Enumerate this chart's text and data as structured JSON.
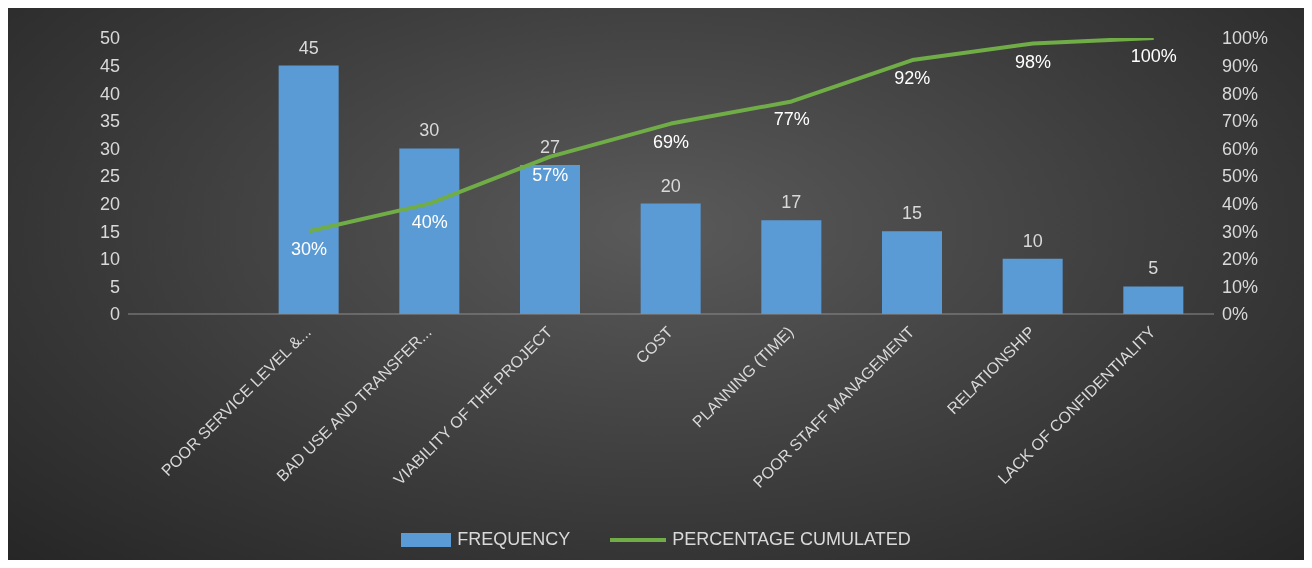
{
  "chart_data": {
    "type": "bar",
    "categories": [
      null,
      "POOR SERVICE LEVEL &...",
      "BAD USE AND TRANSFER...",
      "VIABILITY OF THE PROJECT",
      "COST",
      "PLANNING (TIME)",
      "POOR STAFF MANAGEMENT",
      "RELATIONSHIP",
      "LACK OF CONFIDENTIALITY"
    ],
    "series": [
      {
        "name": "FREQUENCY",
        "color": "#5b9bd5",
        "values": [
          null,
          45,
          30,
          27,
          20,
          17,
          15,
          10,
          5
        ],
        "value_labels": [
          null,
          "45",
          "30",
          "27",
          "20",
          "17",
          "15",
          "10",
          "5"
        ]
      },
      {
        "name": "PERCENTAGE CUMULATED",
        "type": "line",
        "axis": "y2",
        "color": "#70ad47",
        "values": [
          null,
          30,
          40,
          57,
          69,
          77,
          92,
          98,
          100
        ],
        "value_labels": [
          null,
          "30%",
          "40%",
          "57%",
          "69%",
          "77%",
          "92%",
          "98%",
          "100%"
        ]
      }
    ],
    "ylim": [
      0,
      50
    ],
    "yticks": [
      0,
      5,
      10,
      15,
      20,
      25,
      30,
      35,
      40,
      45,
      50
    ],
    "y2lim": [
      0,
      100
    ],
    "y2ticks": [
      {
        "value": 0,
        "label": "0%"
      },
      {
        "value": 10,
        "label": "10%"
      },
      {
        "value": 20,
        "label": "20%"
      },
      {
        "value": 30,
        "label": "30%"
      },
      {
        "value": 40,
        "label": "40%"
      },
      {
        "value": 50,
        "label": "50%"
      },
      {
        "value": 60,
        "label": "60%"
      },
      {
        "value": 70,
        "label": "70%"
      },
      {
        "value": 80,
        "label": "80%"
      },
      {
        "value": 90,
        "label": "90%"
      },
      {
        "value": 100,
        "label": "100%"
      }
    ],
    "grid": false,
    "legend": "bottom",
    "marker": "none",
    "line_style": "solid"
  }
}
